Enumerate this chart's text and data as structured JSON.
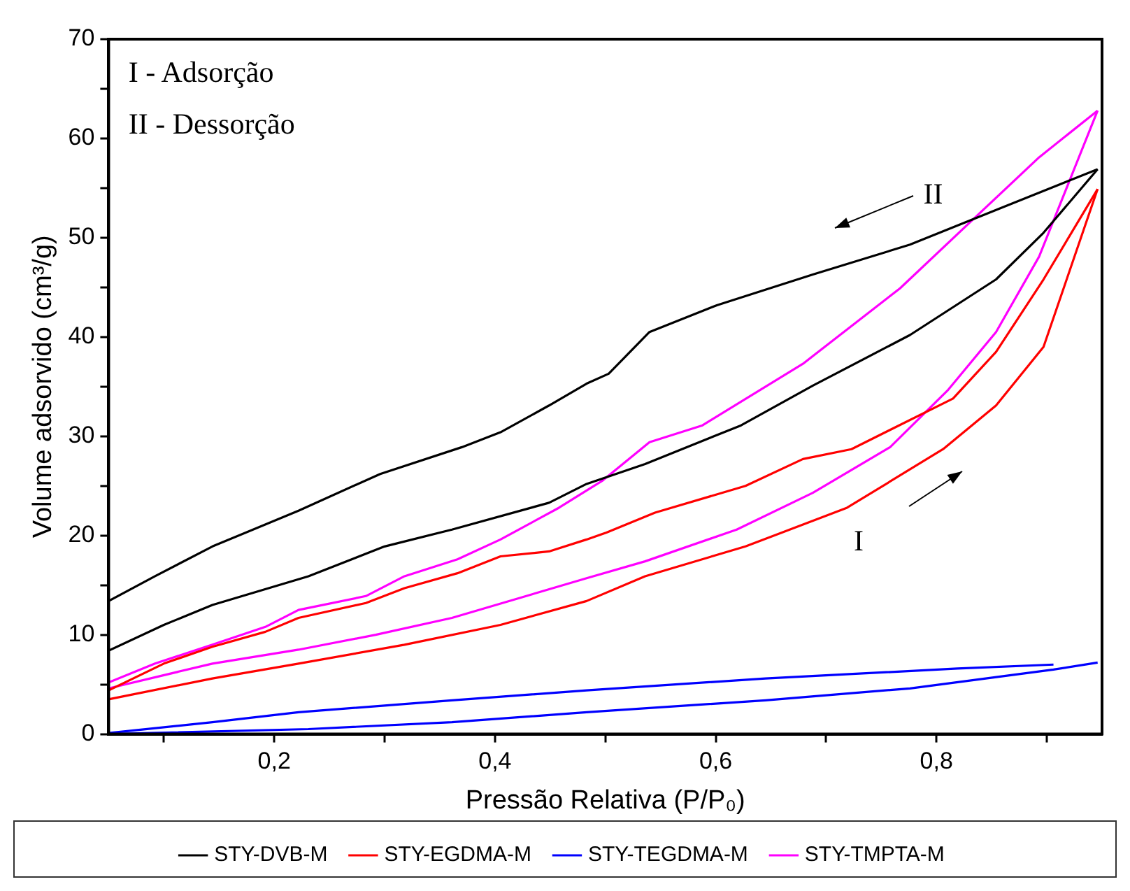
{
  "chart_data": {
    "type": "line",
    "xlabel": "Pressão Relativa (P/P₀)",
    "ylabel": "Volume adsorvido (cm³/g)",
    "xlim": [
      0.05,
      0.95
    ],
    "xticks": [
      {
        "value": 0.1,
        "label": null
      },
      {
        "value": 0.2,
        "label": "0,2"
      },
      {
        "value": 0.3,
        "label": null
      },
      {
        "value": 0.4,
        "label": "0,4"
      },
      {
        "value": 0.5,
        "label": null
      },
      {
        "value": 0.6,
        "label": "0,6"
      },
      {
        "value": 0.7,
        "label": null
      },
      {
        "value": 0.8,
        "label": "0,8"
      },
      {
        "value": 0.9,
        "label": null
      }
    ],
    "ylim": [
      0,
      70
    ],
    "yticks": [
      0,
      {
        "value": 5,
        "label": null
      },
      10,
      {
        "value": 15,
        "label": null
      },
      20,
      {
        "value": 25,
        "label": null
      },
      30,
      {
        "value": 35,
        "label": null
      },
      40,
      {
        "value": 45,
        "label": null
      },
      50,
      {
        "value": 55,
        "label": null
      },
      60,
      {
        "value": 65,
        "label": null
      },
      70
    ],
    "grid": false,
    "legend": "bottom",
    "marker": "none",
    "line_style": "solid",
    "annotations": [
      "I - Adsorção",
      "II - Dessorção",
      "I",
      "II"
    ],
    "series": [
      {
        "name": "STY-DVB-M",
        "color": "#000000",
        "x": [
          0.05,
          0.1,
          0.144,
          0.231,
          0.3,
          0.361,
          0.449,
          0.483,
          0.536,
          0.623,
          0.688,
          0.776,
          0.854,
          0.897,
          0.946
        ],
        "values": [
          8.4,
          11.0,
          13.0,
          15.9,
          18.9,
          20.6,
          23.3,
          25.2,
          27.2,
          31.1,
          35.1,
          40.2,
          45.8,
          50.5,
          56.9
        ]
      },
      {
        "color": "#000000",
        "x": [
          0.05,
          0.092,
          0.144,
          0.222,
          0.296,
          0.37,
          0.405,
          0.449,
          0.483,
          0.503,
          0.54,
          0.601,
          0.688,
          0.776,
          0.863,
          0.946
        ],
        "values": [
          13.4,
          15.9,
          18.9,
          22.5,
          26.2,
          28.9,
          30.4,
          33.1,
          35.3,
          36.3,
          40.5,
          43.2,
          46.3,
          49.3,
          53.2,
          56.9
        ]
      },
      {
        "name": "STY-EGDMA-M",
        "color": "#ff0000",
        "x": [
          0.05,
          0.144,
          0.222,
          0.318,
          0.405,
          0.483,
          0.536,
          0.627,
          0.719,
          0.806,
          0.854,
          0.897,
          0.946
        ],
        "values": [
          3.5,
          5.6,
          7.1,
          9.0,
          11.0,
          13.4,
          15.9,
          18.9,
          22.8,
          28.7,
          33.1,
          39.0,
          54.9
        ]
      },
      {
        "color": "#ff0000",
        "x": [
          0.05,
          0.1,
          0.144,
          0.192,
          0.222,
          0.283,
          0.318,
          0.366,
          0.405,
          0.449,
          0.483,
          0.501,
          0.545,
          0.627,
          0.679,
          0.723,
          0.815,
          0.854,
          0.897,
          0.946
        ],
        "values": [
          4.4,
          7.1,
          8.8,
          10.3,
          11.7,
          13.2,
          14.7,
          16.2,
          17.9,
          18.4,
          19.6,
          20.3,
          22.3,
          25.0,
          27.7,
          28.7,
          33.8,
          38.5,
          45.8,
          54.9
        ]
      },
      {
        "name": "STY-TEGDMA-M",
        "color": "#0000ff",
        "x": [
          0.05,
          0.231,
          0.361,
          0.483,
          0.645,
          0.776,
          0.906,
          0.946
        ],
        "values": [
          0,
          0.5,
          1.2,
          2.2,
          3.4,
          4.6,
          6.5,
          7.2
        ]
      },
      {
        "color": "#0000ff",
        "x": [
          0.05,
          0.144,
          0.222,
          0.361,
          0.483,
          0.645,
          0.819,
          0.906
        ],
        "values": [
          0.1,
          1.2,
          2.2,
          3.4,
          4.4,
          5.6,
          6.6,
          7.0
        ]
      },
      {
        "name": "STY-TMPTA-M",
        "color": "#ff00ff",
        "x": [
          0.05,
          0.144,
          0.222,
          0.292,
          0.361,
          0.483,
          0.536,
          0.619,
          0.688,
          0.758,
          0.81,
          0.854,
          0.893,
          0.946
        ],
        "values": [
          4.6,
          7.1,
          8.5,
          10.0,
          11.7,
          15.7,
          17.4,
          20.6,
          24.3,
          28.9,
          34.6,
          40.5,
          48.1,
          62.8
        ]
      },
      {
        "color": "#ff00ff",
        "x": [
          0.05,
          0.092,
          0.144,
          0.192,
          0.222,
          0.283,
          0.318,
          0.366,
          0.405,
          0.458,
          0.497,
          0.54,
          0.588,
          0.679,
          0.767,
          0.828,
          0.893,
          0.946
        ],
        "values": [
          5.2,
          7.1,
          9.0,
          10.8,
          12.5,
          13.9,
          15.9,
          17.6,
          19.6,
          22.8,
          25.5,
          29.4,
          31.1,
          37.3,
          44.9,
          51.3,
          58.1,
          62.8
        ]
      }
    ]
  }
}
